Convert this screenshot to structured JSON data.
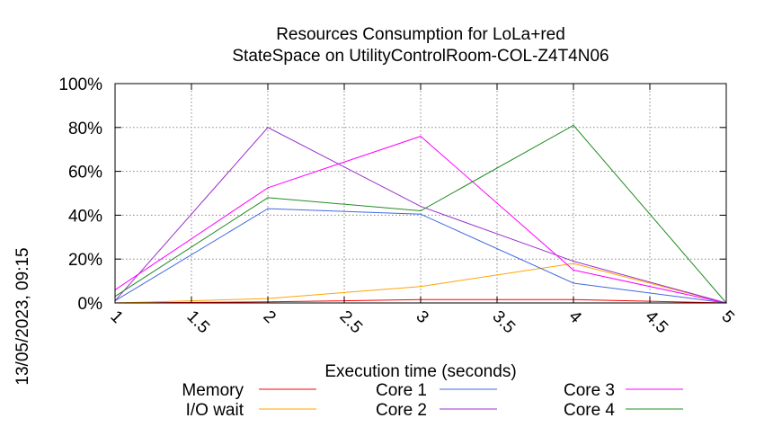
{
  "chart_data": {
    "type": "line",
    "title_lines": [
      "Resources Consumption for LoLa+red",
      "StateSpace on UtilityControlRoom-COL-Z4T4N06"
    ],
    "xlabel": "Execution time (seconds)",
    "ylabel": "",
    "side_label": "13/05/2023, 09:15",
    "xlim": [
      1,
      5
    ],
    "ylim": [
      0,
      100
    ],
    "x_ticks": [
      1,
      1.5,
      2,
      2.5,
      3,
      3.5,
      4,
      4.5,
      5
    ],
    "x_tick_labels": [
      "1",
      "1.5",
      "2",
      "2.5",
      "3",
      "3.5",
      "4",
      "4.5",
      "5"
    ],
    "y_ticks": [
      0,
      20,
      40,
      60,
      80,
      100
    ],
    "y_tick_labels": [
      "0%",
      "20%",
      "40%",
      "60%",
      "80%",
      "100%"
    ],
    "grid": true,
    "legend_position": "bottom",
    "x": [
      1,
      2,
      3,
      4,
      5
    ],
    "series": [
      {
        "name": "Memory",
        "color": "#ff0000",
        "values": [
          0,
          0.5,
          1.5,
          1.5,
          0
        ]
      },
      {
        "name": "I/O wait",
        "color": "#ffa500",
        "values": [
          0,
          2,
          7.5,
          18,
          0
        ]
      },
      {
        "name": "Core 1",
        "color": "#4169e1",
        "values": [
          1,
          43,
          40.5,
          9,
          0
        ]
      },
      {
        "name": "Core 2",
        "color": "#9932cc",
        "values": [
          1,
          80,
          44,
          19,
          0
        ]
      },
      {
        "name": "Core 3",
        "color": "#ff00ff",
        "values": [
          6,
          52.5,
          76,
          15,
          0
        ]
      },
      {
        "name": "Core 4",
        "color": "#228b22",
        "values": [
          3,
          48,
          42,
          81,
          0
        ]
      }
    ]
  }
}
